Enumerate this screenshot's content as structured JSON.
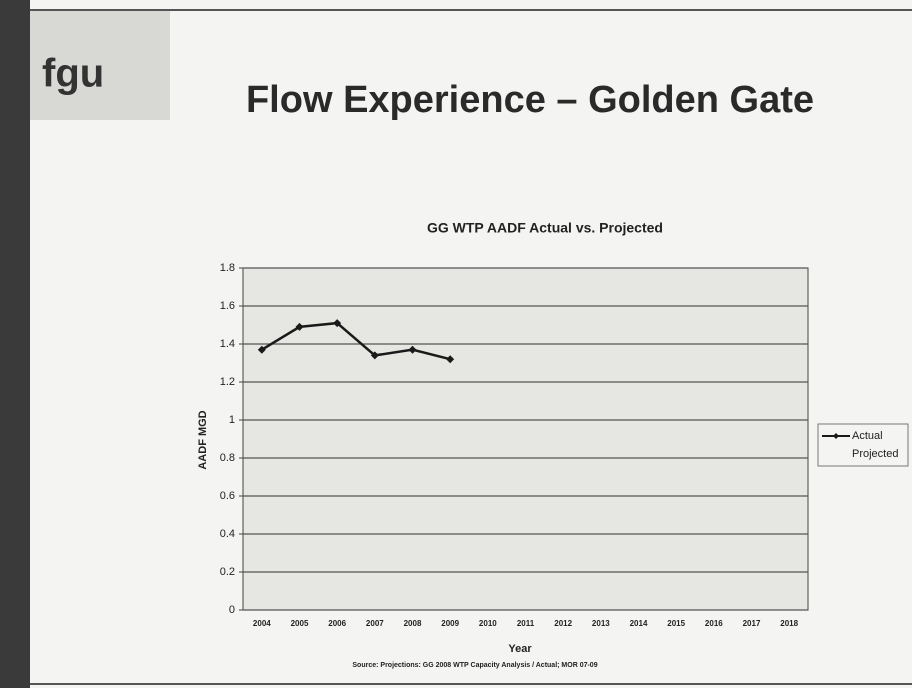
{
  "slide": {
    "logo": "fgu",
    "title": "Flow Experience – Golden Gate",
    "source": "Source: Projections: GG 2008 WTP Capacity Analysis / Actual; MOR 07-09"
  },
  "chart_data": {
    "type": "line",
    "title": "GG WTP AADF Actual vs. Projected",
    "x_label": "Year",
    "y_label": "AADF MGD",
    "categories": [
      "2004",
      "2005",
      "2006",
      "2007",
      "2008",
      "2009",
      "2010",
      "2011",
      "2012",
      "2013",
      "2014",
      "2015",
      "2016",
      "2017",
      "2018"
    ],
    "series": [
      {
        "name": "Actual",
        "color": "#1a1a1a",
        "values": [
          1.37,
          1.49,
          1.51,
          1.34,
          1.37,
          1.32,
          null,
          null,
          null,
          null,
          null,
          null,
          null,
          null,
          null
        ]
      },
      {
        "name": "Projected",
        "values": [
          null,
          null,
          null,
          null,
          null,
          null,
          null,
          null,
          null,
          null,
          null,
          null,
          null,
          null,
          null
        ]
      }
    ],
    "ylim": [
      0,
      1.8
    ],
    "yticks": [
      0,
      0.2,
      0.4,
      0.6,
      0.8,
      1,
      1.2,
      1.4,
      1.6,
      1.8
    ],
    "grid": true,
    "legend": "right"
  }
}
